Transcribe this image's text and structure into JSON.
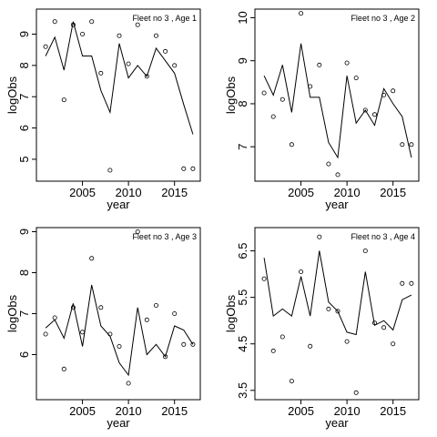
{
  "chart_data": [
    {
      "type": "scatter",
      "title": "Fleet no 3 , Age 1",
      "xlabel": "year",
      "ylabel": "logObs",
      "xlim": [
        2000,
        2017.8
      ],
      "ylim": [
        4.3,
        9.8
      ],
      "xticks": [
        2005,
        2010,
        2015
      ],
      "yticks": [
        5,
        6,
        7,
        8,
        9
      ],
      "series": [
        {
          "kind": "points",
          "x": [
            2001,
            2002,
            2003,
            2004,
            2005,
            2006,
            2007,
            2008,
            2009,
            2010,
            2011,
            2012,
            2013,
            2014,
            2015,
            2016,
            2017
          ],
          "y": [
            8.6,
            9.4,
            6.9,
            9.3,
            9.0,
            9.4,
            7.75,
            4.65,
            8.95,
            8.05,
            9.3,
            7.65,
            8.95,
            8.45,
            8.0,
            4.7,
            4.7
          ]
        },
        {
          "kind": "line",
          "x": [
            2001,
            2002,
            2003,
            2004,
            2005,
            2006,
            2007,
            2008,
            2009,
            2010,
            2011,
            2012,
            2013,
            2014,
            2015,
            2016,
            2017
          ],
          "y": [
            8.3,
            8.9,
            7.85,
            9.4,
            8.3,
            8.3,
            7.2,
            6.5,
            8.7,
            7.6,
            8.0,
            7.65,
            8.55,
            8.15,
            7.75,
            6.75,
            5.8
          ]
        }
      ]
    },
    {
      "type": "scatter",
      "title": "Fleet no 3 , Age 2",
      "xlabel": "year",
      "ylabel": "logObs",
      "xlim": [
        2000,
        2017.8
      ],
      "ylim": [
        6.2,
        10.2
      ],
      "xticks": [
        2005,
        2010,
        2015
      ],
      "yticks": [
        7,
        8,
        9,
        10
      ],
      "series": [
        {
          "kind": "points",
          "x": [
            2001,
            2002,
            2003,
            2004,
            2005,
            2006,
            2007,
            2008,
            2009,
            2010,
            2011,
            2012,
            2013,
            2014,
            2015,
            2016,
            2017
          ],
          "y": [
            8.25,
            7.7,
            8.1,
            7.05,
            10.1,
            8.4,
            8.9,
            6.6,
            6.35,
            8.95,
            8.6,
            7.85,
            7.75,
            8.2,
            8.3,
            7.05,
            7.05
          ]
        },
        {
          "kind": "line",
          "x": [
            2001,
            2002,
            2003,
            2004,
            2005,
            2006,
            2007,
            2008,
            2009,
            2010,
            2011,
            2012,
            2013,
            2014,
            2015,
            2016,
            2017
          ],
          "y": [
            8.65,
            8.2,
            8.9,
            7.8,
            9.4,
            8.15,
            8.15,
            7.1,
            6.75,
            8.65,
            7.55,
            7.85,
            7.5,
            8.35,
            8.0,
            7.7,
            6.75
          ]
        }
      ]
    },
    {
      "type": "scatter",
      "title": "Fleet no 3 , Age 3",
      "xlabel": "year",
      "ylabel": "logObs",
      "xlim": [
        2000,
        2017.8
      ],
      "ylim": [
        4.9,
        9.1
      ],
      "xticks": [
        2005,
        2010,
        2015
      ],
      "yticks": [
        6,
        7,
        8,
        9
      ],
      "series": [
        {
          "kind": "points",
          "x": [
            2001,
            2002,
            2003,
            2004,
            2005,
            2006,
            2007,
            2008,
            2009,
            2010,
            2011,
            2012,
            2013,
            2014,
            2015,
            2016,
            2017
          ],
          "y": [
            6.5,
            6.9,
            5.65,
            7.15,
            6.55,
            8.35,
            7.15,
            6.5,
            6.2,
            5.3,
            9.0,
            6.85,
            7.2,
            5.95,
            7.0,
            6.25,
            6.25
          ]
        },
        {
          "kind": "line",
          "x": [
            2001,
            2002,
            2003,
            2004,
            2005,
            2006,
            2007,
            2008,
            2009,
            2010,
            2011,
            2012,
            2013,
            2014,
            2015,
            2016,
            2017
          ],
          "y": [
            6.65,
            6.85,
            6.4,
            7.25,
            6.2,
            7.7,
            6.7,
            6.45,
            5.8,
            5.5,
            7.15,
            6.0,
            6.25,
            5.95,
            6.7,
            6.6,
            6.25
          ]
        }
      ]
    },
    {
      "type": "scatter",
      "title": "Fleet no 3 , Age 4",
      "xlabel": "year",
      "ylabel": "logObs",
      "xlim": [
        2000,
        2017.8
      ],
      "ylim": [
        3.3,
        7.0
      ],
      "xticks": [
        2005,
        2010,
        2015
      ],
      "yticks": [
        3.5,
        4.5,
        5.5,
        6.5
      ],
      "series": [
        {
          "kind": "points",
          "x": [
            2001,
            2002,
            2003,
            2004,
            2005,
            2006,
            2007,
            2008,
            2009,
            2010,
            2011,
            2012,
            2013,
            2014,
            2015,
            2016,
            2017
          ],
          "y": [
            5.9,
            4.35,
            4.65,
            3.7,
            6.05,
            4.45,
            6.8,
            5.25,
            5.2,
            4.55,
            3.45,
            6.5,
            4.95,
            4.85,
            4.5,
            5.8,
            5.8
          ]
        },
        {
          "kind": "line",
          "x": [
            2001,
            2002,
            2003,
            2004,
            2005,
            2006,
            2007,
            2008,
            2009,
            2010,
            2011,
            2012,
            2013,
            2014,
            2015,
            2016,
            2017
          ],
          "y": [
            6.35,
            5.1,
            5.25,
            5.1,
            5.95,
            5.1,
            6.5,
            5.4,
            5.2,
            4.75,
            4.7,
            6.05,
            4.9,
            5.0,
            4.8,
            5.45,
            5.55
          ]
        }
      ]
    }
  ]
}
